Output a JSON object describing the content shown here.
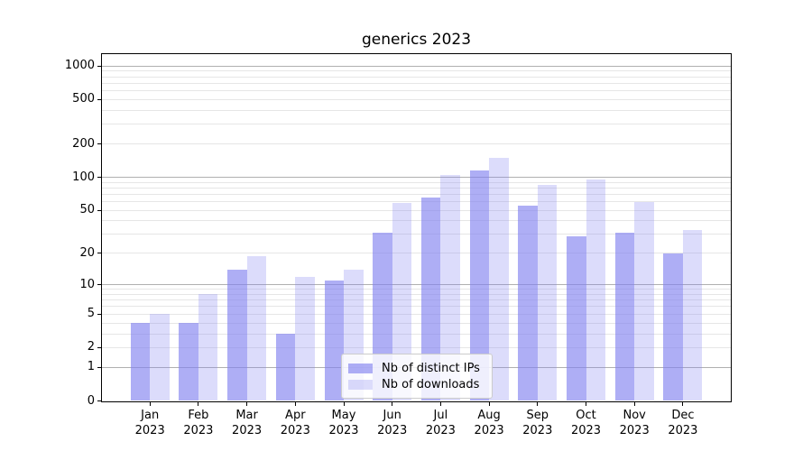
{
  "chart_data": {
    "type": "bar",
    "title": "generics 2023",
    "scale": "log10(1+x)",
    "categories": [
      "Jan 2023",
      "Feb 2023",
      "Mar 2023",
      "Apr 2023",
      "May 2023",
      "Jun 2023",
      "Jul 2023",
      "Aug 2023",
      "Sep 2023",
      "Oct 2023",
      "Nov 2023",
      "Dec 2023"
    ],
    "series": [
      {
        "name": "Nb of distinct IPs",
        "values": [
          4,
          4,
          14,
          3,
          11,
          31,
          65,
          115,
          55,
          29,
          31,
          20
        ],
        "color": "#8282f0",
        "alpha": 0.65
      },
      {
        "name": "Nb of downloads",
        "values": [
          5,
          8,
          19,
          12,
          14,
          58,
          105,
          150,
          85,
          96,
          60,
          33
        ],
        "color": "#8282f0",
        "alpha": 0.28
      }
    ],
    "yticks": [
      0,
      1,
      2,
      5,
      10,
      20,
      50,
      100,
      200,
      500,
      1000
    ],
    "grid_major": [
      1,
      10,
      100,
      1000
    ],
    "ylim": [
      0,
      1280
    ],
    "xlabel": "",
    "ylabel": "",
    "grid": "horizontal",
    "legend_position": "lower center"
  },
  "colors": {
    "background": "#ffffff",
    "grid_major": "#b0b0b0",
    "grid_minor": "#e6e6e6",
    "axis": "#000000",
    "text": "#000000",
    "legend_border": "#cccccc",
    "legend_bg": "#ffffff",
    "legend_bg_alpha": 0.8
  }
}
